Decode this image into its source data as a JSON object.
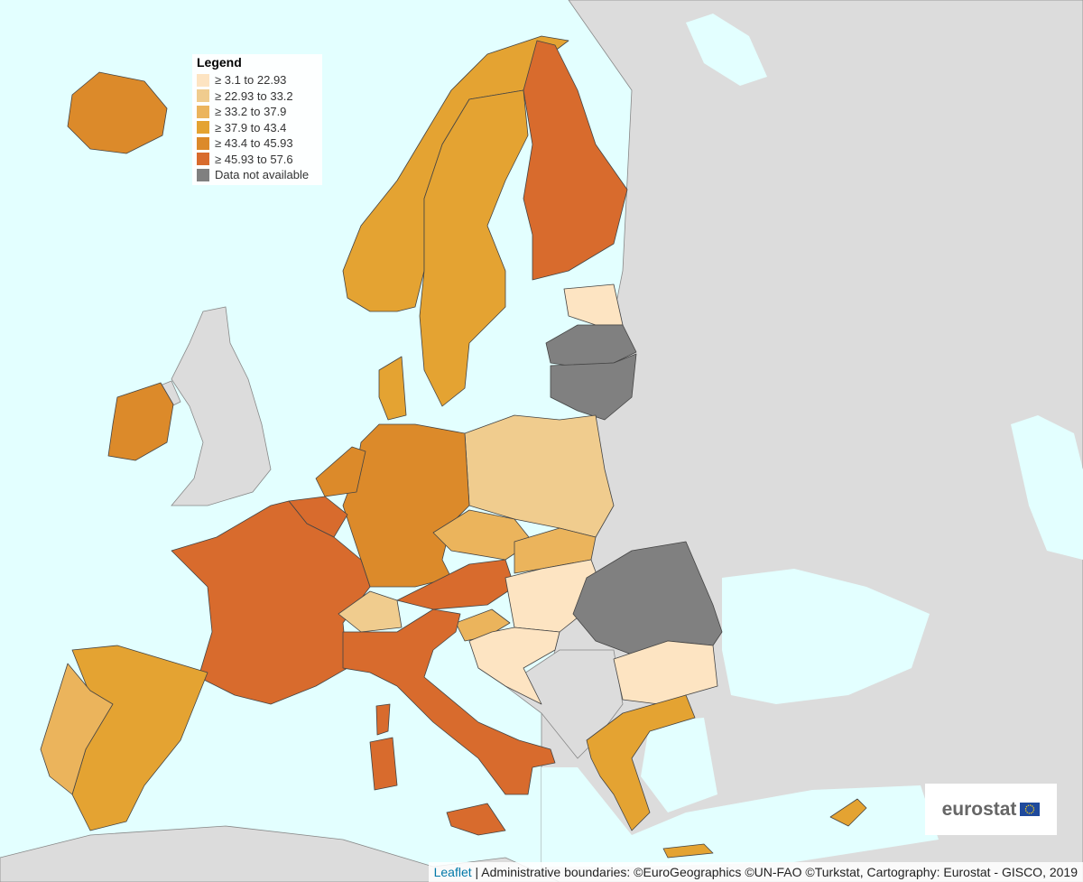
{
  "legend": {
    "title": "Legend",
    "items": [
      {
        "label": "≥ 3.1 to 22.93",
        "color": "#fde4c2"
      },
      {
        "label": "≥ 22.93 to 33.2",
        "color": "#f0cc8e"
      },
      {
        "label": "≥ 33.2 to 37.9",
        "color": "#ebb45c"
      },
      {
        "label": "≥ 37.9 to 43.4",
        "color": "#e4a332"
      },
      {
        "label": "≥ 43.4 to 45.93",
        "color": "#dc8a2a"
      },
      {
        "label": "≥ 45.93 to 57.6",
        "color": "#d86b2d"
      },
      {
        "label": "Data not available",
        "color": "#808080"
      }
    ]
  },
  "logo": {
    "text": "eurostat"
  },
  "attribution": {
    "link": "Leaflet",
    "text": "| Administrative boundaries: ©EuroGeographics ©UN-FAO ©Turkstat, Cartography: Eurostat - GISCO, 2019"
  }
}
